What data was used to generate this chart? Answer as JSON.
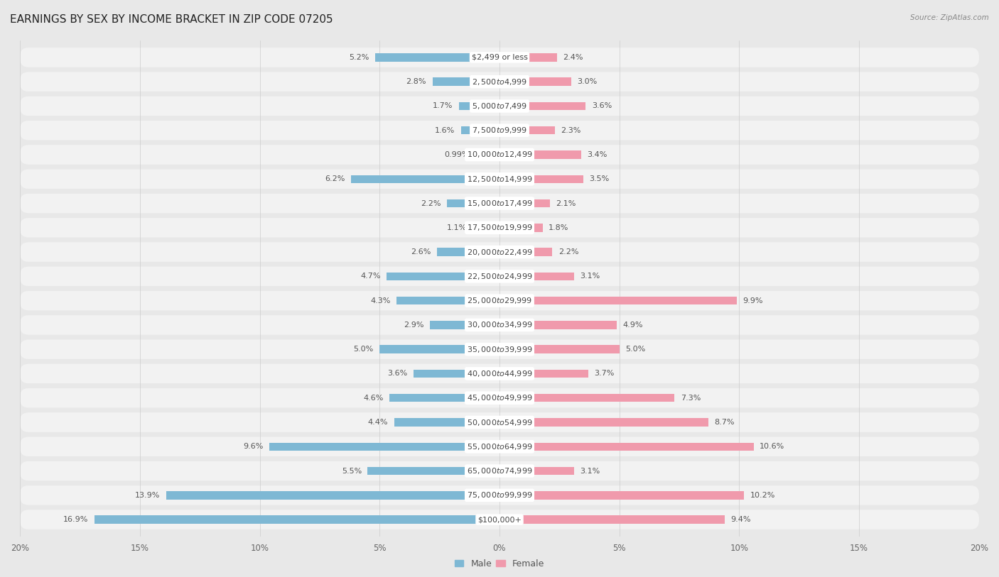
{
  "title": "EARNINGS BY SEX BY INCOME BRACKET IN ZIP CODE 07205",
  "source": "Source: ZipAtlas.com",
  "categories": [
    "$2,499 or less",
    "$2,500 to $4,999",
    "$5,000 to $7,499",
    "$7,500 to $9,999",
    "$10,000 to $12,499",
    "$12,500 to $14,999",
    "$15,000 to $17,499",
    "$17,500 to $19,999",
    "$20,000 to $22,499",
    "$22,500 to $24,999",
    "$25,000 to $29,999",
    "$30,000 to $34,999",
    "$35,000 to $39,999",
    "$40,000 to $44,999",
    "$45,000 to $49,999",
    "$50,000 to $54,999",
    "$55,000 to $64,999",
    "$65,000 to $74,999",
    "$75,000 to $99,999",
    "$100,000+"
  ],
  "male_values": [
    5.2,
    2.8,
    1.7,
    1.6,
    0.99,
    6.2,
    2.2,
    1.1,
    2.6,
    4.7,
    4.3,
    2.9,
    5.0,
    3.6,
    4.6,
    4.4,
    9.6,
    5.5,
    13.9,
    16.9
  ],
  "female_values": [
    2.4,
    3.0,
    3.6,
    2.3,
    3.4,
    3.5,
    2.1,
    1.8,
    2.2,
    3.1,
    9.9,
    4.9,
    5.0,
    3.7,
    7.3,
    8.7,
    10.6,
    3.1,
    10.2,
    9.4
  ],
  "male_color": "#7eb8d4",
  "female_color": "#f09aac",
  "axis_max": 20.0,
  "bg_color": "#e8e8e8",
  "row_color": "#f2f2f2",
  "title_fontsize": 11,
  "tick_fontsize": 8.5,
  "category_fontsize": 8.0,
  "value_fontsize": 8.0
}
